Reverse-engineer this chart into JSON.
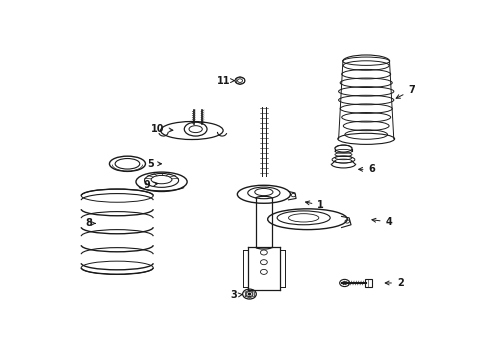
{
  "bg_color": "#ffffff",
  "line_color": "#1a1a1a",
  "figsize": [
    4.89,
    3.6
  ],
  "dpi": 100,
  "parts_labels": {
    "1": [
      0.685,
      0.415,
      0.635,
      0.43
    ],
    "2": [
      0.895,
      0.135,
      0.845,
      0.135
    ],
    "3": [
      0.455,
      0.09,
      0.488,
      0.095
    ],
    "4": [
      0.865,
      0.355,
      0.81,
      0.365
    ],
    "5": [
      0.235,
      0.565,
      0.275,
      0.565
    ],
    "6": [
      0.82,
      0.545,
      0.775,
      0.545
    ],
    "7": [
      0.925,
      0.83,
      0.875,
      0.795
    ],
    "8": [
      0.072,
      0.35,
      0.092,
      0.35
    ],
    "9": [
      0.225,
      0.49,
      0.265,
      0.495
    ],
    "10": [
      0.255,
      0.69,
      0.305,
      0.685
    ],
    "11": [
      0.43,
      0.865,
      0.46,
      0.865
    ]
  }
}
